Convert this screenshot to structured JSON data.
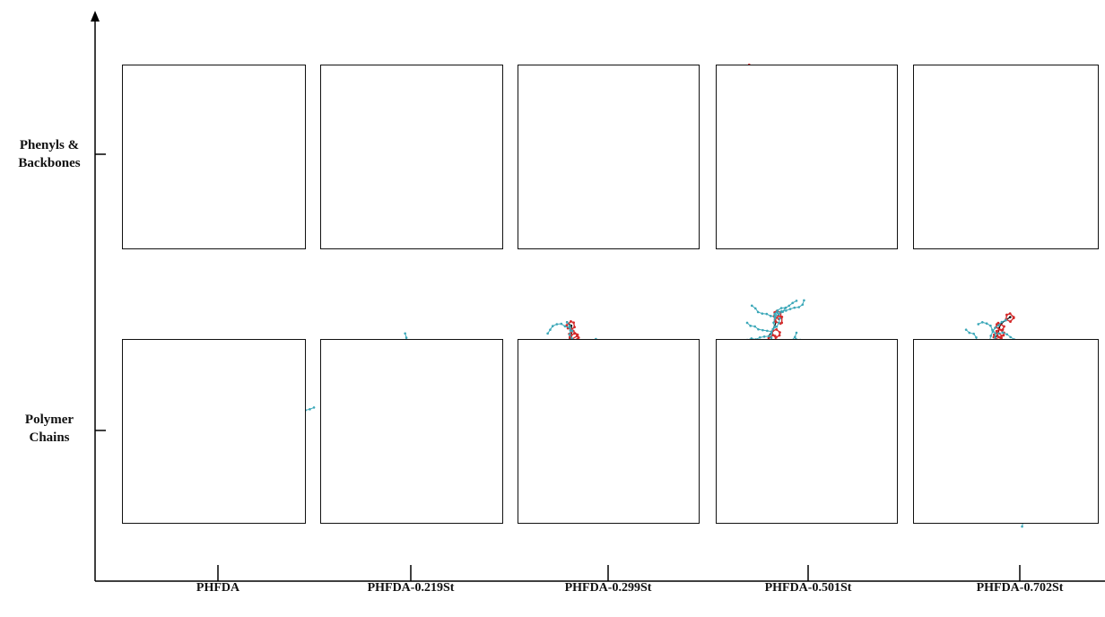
{
  "figure": {
    "row_labels": [
      "Phenyls &\nBackbones",
      "Polymer\nChains"
    ],
    "column_labels": [
      "PHFDA",
      "PHFDA-0.219St",
      "PHFDA-0.299St",
      "PHFDA-0.501St",
      "PHFDA-0.702St"
    ],
    "colors": {
      "backbone": "#111111",
      "phenyl": "#d42a2a",
      "side_chain": "#3aa7b8",
      "axis": "#000000"
    },
    "panel_types": [
      "phenyls-backbones",
      "polymer-chains"
    ]
  }
}
